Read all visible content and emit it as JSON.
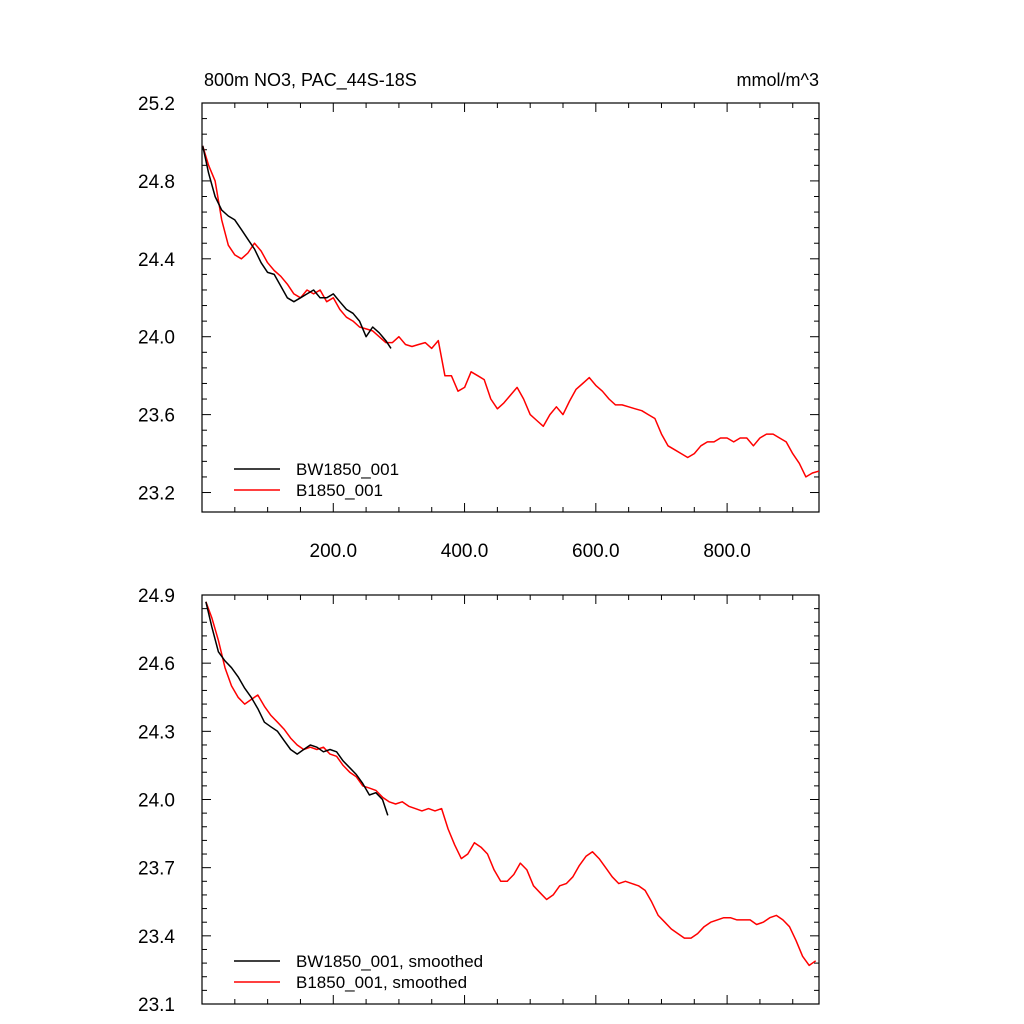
{
  "chart_data": [
    {
      "type": "line",
      "title": "800m NO3, PAC_44S-18S",
      "units": "mmol/m^3",
      "xlim": [
        0,
        940
      ],
      "ylim": [
        23.1,
        25.2
      ],
      "x_ticks": [
        200,
        400,
        600,
        800
      ],
      "x_tick_labels": [
        "200.0",
        "400.0",
        "600.0",
        "800.0"
      ],
      "y_ticks": [
        23.2,
        23.6,
        24.0,
        24.4,
        24.8,
        25.2
      ],
      "y_tick_labels": [
        "23.2",
        "23.6",
        "24.0",
        "24.4",
        "24.8",
        "25.2"
      ],
      "legend_position": "bottom-left",
      "series": [
        {
          "name": "BW1850_001",
          "color": "#000000",
          "x": [
            1,
            10,
            20,
            30,
            40,
            50,
            60,
            70,
            80,
            90,
            100,
            110,
            120,
            130,
            140,
            150,
            160,
            170,
            180,
            190,
            200,
            210,
            220,
            230,
            240,
            250,
            260,
            270,
            280,
            288
          ],
          "values": [
            24.98,
            24.84,
            24.72,
            24.65,
            24.62,
            24.6,
            24.55,
            24.5,
            24.45,
            24.38,
            24.33,
            24.32,
            24.26,
            24.2,
            24.18,
            24.2,
            24.22,
            24.24,
            24.2,
            24.2,
            24.22,
            24.18,
            24.14,
            24.12,
            24.08,
            24.0,
            24.05,
            24.02,
            23.98,
            23.94
          ]
        },
        {
          "name": "B1850_001",
          "color": "#ff0000",
          "x": [
            1,
            10,
            20,
            30,
            40,
            50,
            60,
            70,
            80,
            90,
            100,
            110,
            120,
            130,
            140,
            150,
            160,
            170,
            180,
            190,
            200,
            210,
            220,
            230,
            240,
            250,
            260,
            270,
            280,
            290,
            300,
            310,
            320,
            330,
            340,
            350,
            360,
            370,
            380,
            390,
            400,
            410,
            420,
            430,
            440,
            450,
            460,
            470,
            480,
            490,
            500,
            510,
            520,
            530,
            540,
            550,
            560,
            570,
            580,
            590,
            600,
            610,
            620,
            630,
            640,
            650,
            660,
            670,
            680,
            690,
            700,
            710,
            720,
            730,
            740,
            750,
            760,
            770,
            780,
            790,
            800,
            810,
            820,
            830,
            840,
            850,
            860,
            870,
            880,
            890,
            900,
            910,
            920,
            930,
            940
          ],
          "values": [
            24.98,
            24.88,
            24.8,
            24.6,
            24.47,
            24.42,
            24.4,
            24.43,
            24.48,
            24.44,
            24.38,
            24.34,
            24.31,
            24.27,
            24.22,
            24.2,
            24.24,
            24.22,
            24.24,
            24.18,
            24.2,
            24.14,
            24.1,
            24.08,
            24.05,
            24.04,
            24.03,
            24.0,
            23.97,
            23.97,
            24.0,
            23.96,
            23.95,
            23.96,
            23.97,
            23.94,
            23.98,
            23.8,
            23.8,
            23.72,
            23.74,
            23.82,
            23.8,
            23.78,
            23.68,
            23.63,
            23.66,
            23.7,
            23.74,
            23.68,
            23.6,
            23.57,
            23.54,
            23.6,
            23.64,
            23.6,
            23.67,
            23.73,
            23.76,
            23.79,
            23.75,
            23.72,
            23.68,
            23.65,
            23.65,
            23.64,
            23.63,
            23.62,
            23.6,
            23.58,
            23.5,
            23.44,
            23.42,
            23.4,
            23.38,
            23.4,
            23.44,
            23.46,
            23.46,
            23.48,
            23.48,
            23.46,
            23.48,
            23.48,
            23.44,
            23.48,
            23.5,
            23.5,
            23.48,
            23.46,
            23.4,
            23.35,
            23.28,
            23.3,
            23.31
          ]
        }
      ]
    },
    {
      "type": "line",
      "xlim": [
        0,
        940
      ],
      "ylim": [
        23.1,
        24.9
      ],
      "y_ticks": [
        23.1,
        23.4,
        23.7,
        24.0,
        24.3,
        24.6,
        24.9
      ],
      "y_tick_labels": [
        "23.1",
        "23.4",
        "23.7",
        "24.0",
        "24.3",
        "24.6",
        "24.9"
      ],
      "x_ticks": [
        200,
        400,
        600,
        800
      ],
      "legend_position": "bottom-left",
      "series": [
        {
          "name": "BW1850_001, smoothed",
          "color": "#000000",
          "x": [
            6,
            15,
            25,
            35,
            45,
            55,
            65,
            75,
            85,
            95,
            105,
            115,
            125,
            135,
            145,
            155,
            165,
            175,
            185,
            195,
            205,
            215,
            225,
            235,
            245,
            255,
            265,
            275,
            283
          ],
          "values": [
            24.87,
            24.76,
            24.65,
            24.61,
            24.58,
            24.54,
            24.49,
            24.45,
            24.4,
            24.34,
            24.32,
            24.3,
            24.26,
            24.22,
            24.2,
            24.22,
            24.24,
            24.23,
            24.21,
            24.22,
            24.21,
            24.17,
            24.14,
            24.11,
            24.07,
            24.02,
            24.03,
            24.0,
            23.93
          ]
        },
        {
          "name": "B1850_001, smoothed",
          "color": "#ff0000",
          "x": [
            6,
            15,
            25,
            35,
            45,
            55,
            65,
            75,
            85,
            95,
            105,
            115,
            125,
            135,
            145,
            155,
            165,
            175,
            185,
            195,
            205,
            215,
            225,
            235,
            245,
            255,
            265,
            275,
            285,
            295,
            305,
            315,
            325,
            335,
            345,
            355,
            365,
            375,
            385,
            395,
            405,
            415,
            425,
            435,
            445,
            455,
            465,
            475,
            485,
            495,
            505,
            515,
            525,
            535,
            545,
            555,
            565,
            575,
            585,
            595,
            605,
            615,
            625,
            635,
            645,
            655,
            665,
            675,
            685,
            695,
            705,
            715,
            725,
            735,
            745,
            755,
            765,
            775,
            785,
            795,
            805,
            815,
            825,
            835,
            845,
            855,
            865,
            875,
            885,
            895,
            905,
            915,
            925,
            935
          ],
          "values": [
            24.87,
            24.8,
            24.7,
            24.58,
            24.5,
            24.45,
            24.42,
            24.44,
            24.46,
            24.41,
            24.37,
            24.34,
            24.31,
            24.27,
            24.24,
            24.22,
            24.23,
            24.22,
            24.23,
            24.2,
            24.19,
            24.15,
            24.12,
            24.1,
            24.06,
            24.05,
            24.04,
            24.01,
            23.99,
            23.98,
            23.99,
            23.97,
            23.96,
            23.95,
            23.96,
            23.95,
            23.96,
            23.87,
            23.8,
            23.74,
            23.76,
            23.81,
            23.79,
            23.76,
            23.69,
            23.64,
            23.64,
            23.67,
            23.72,
            23.69,
            23.62,
            23.59,
            23.56,
            23.58,
            23.62,
            23.63,
            23.66,
            23.71,
            23.75,
            23.77,
            23.74,
            23.7,
            23.66,
            23.63,
            23.64,
            23.63,
            23.62,
            23.6,
            23.55,
            23.49,
            23.46,
            23.43,
            23.41,
            23.39,
            23.39,
            23.41,
            23.44,
            23.46,
            23.47,
            23.48,
            23.48,
            23.47,
            23.47,
            23.47,
            23.45,
            23.46,
            23.48,
            23.49,
            23.47,
            23.44,
            23.38,
            23.31,
            23.27,
            23.29
          ]
        }
      ]
    }
  ]
}
